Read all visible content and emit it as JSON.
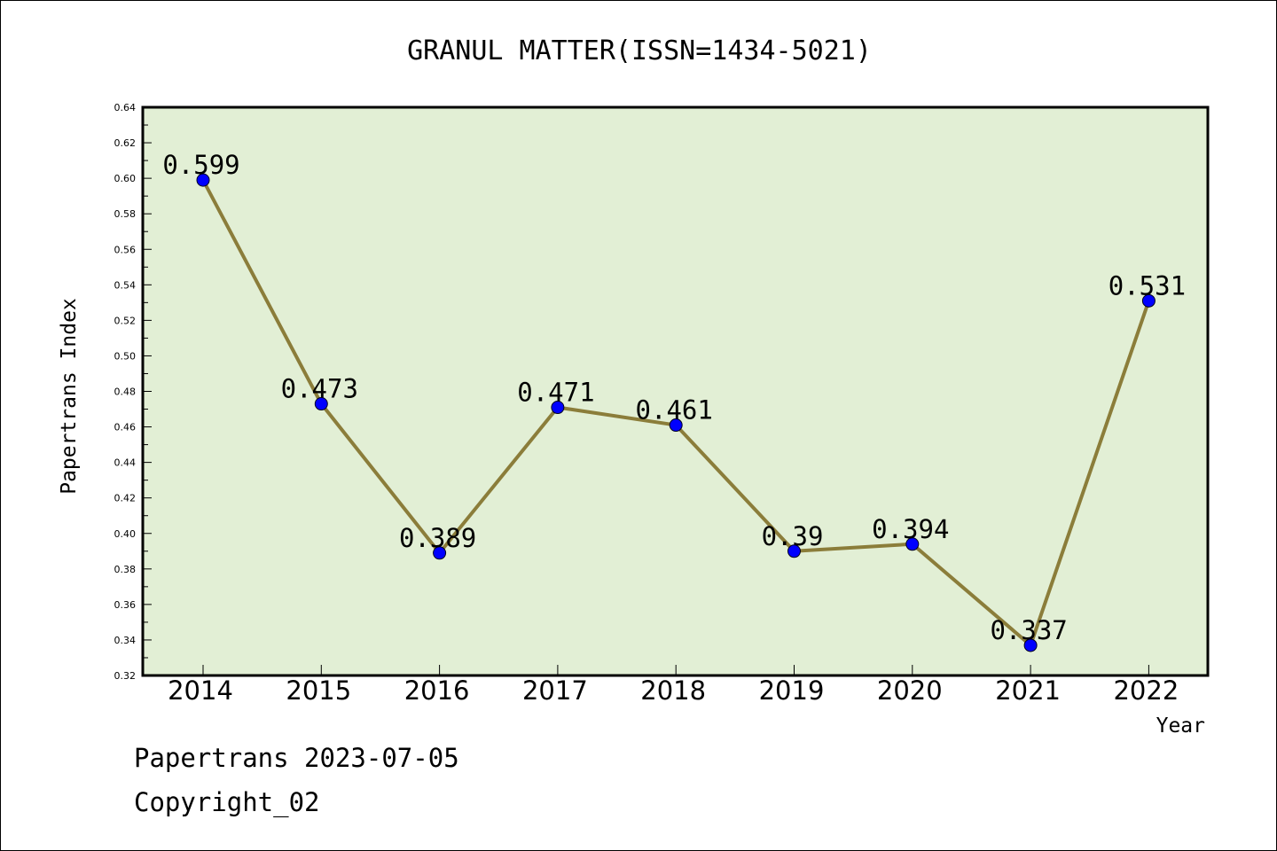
{
  "chart_data": {
    "type": "line",
    "title": "GRANUL MATTER(ISSN=1434-5021)",
    "xlabel": "Year",
    "ylabel": "Papertrans Index",
    "categories": [
      "2014",
      "2015",
      "2016",
      "2017",
      "2018",
      "2019",
      "2020",
      "2021",
      "2022"
    ],
    "values": [
      0.599,
      0.473,
      0.389,
      0.471,
      0.461,
      0.39,
      0.394,
      0.337,
      0.531
    ],
    "data_labels": [
      "0.599",
      "0.473",
      "0.389",
      "0.471",
      "0.461",
      "0.39",
      "0.394",
      "0.337",
      "0.531"
    ],
    "ylim": [
      0.32,
      0.64
    ],
    "yticks": [
      "0.32",
      "0.34",
      "0.36",
      "0.38",
      "0.40",
      "0.42",
      "0.44",
      "0.46",
      "0.48",
      "0.50",
      "0.52",
      "0.54",
      "0.56",
      "0.58",
      "0.60",
      "0.62",
      "0.64"
    ],
    "grid": false,
    "legend": "none",
    "colors": {
      "plot_background": "#e2efd5",
      "line": "#8b7d3a",
      "marker": "#0000ff"
    }
  },
  "footer": {
    "line1": "Papertrans 2023-07-05",
    "line2": "Copyright_02"
  }
}
